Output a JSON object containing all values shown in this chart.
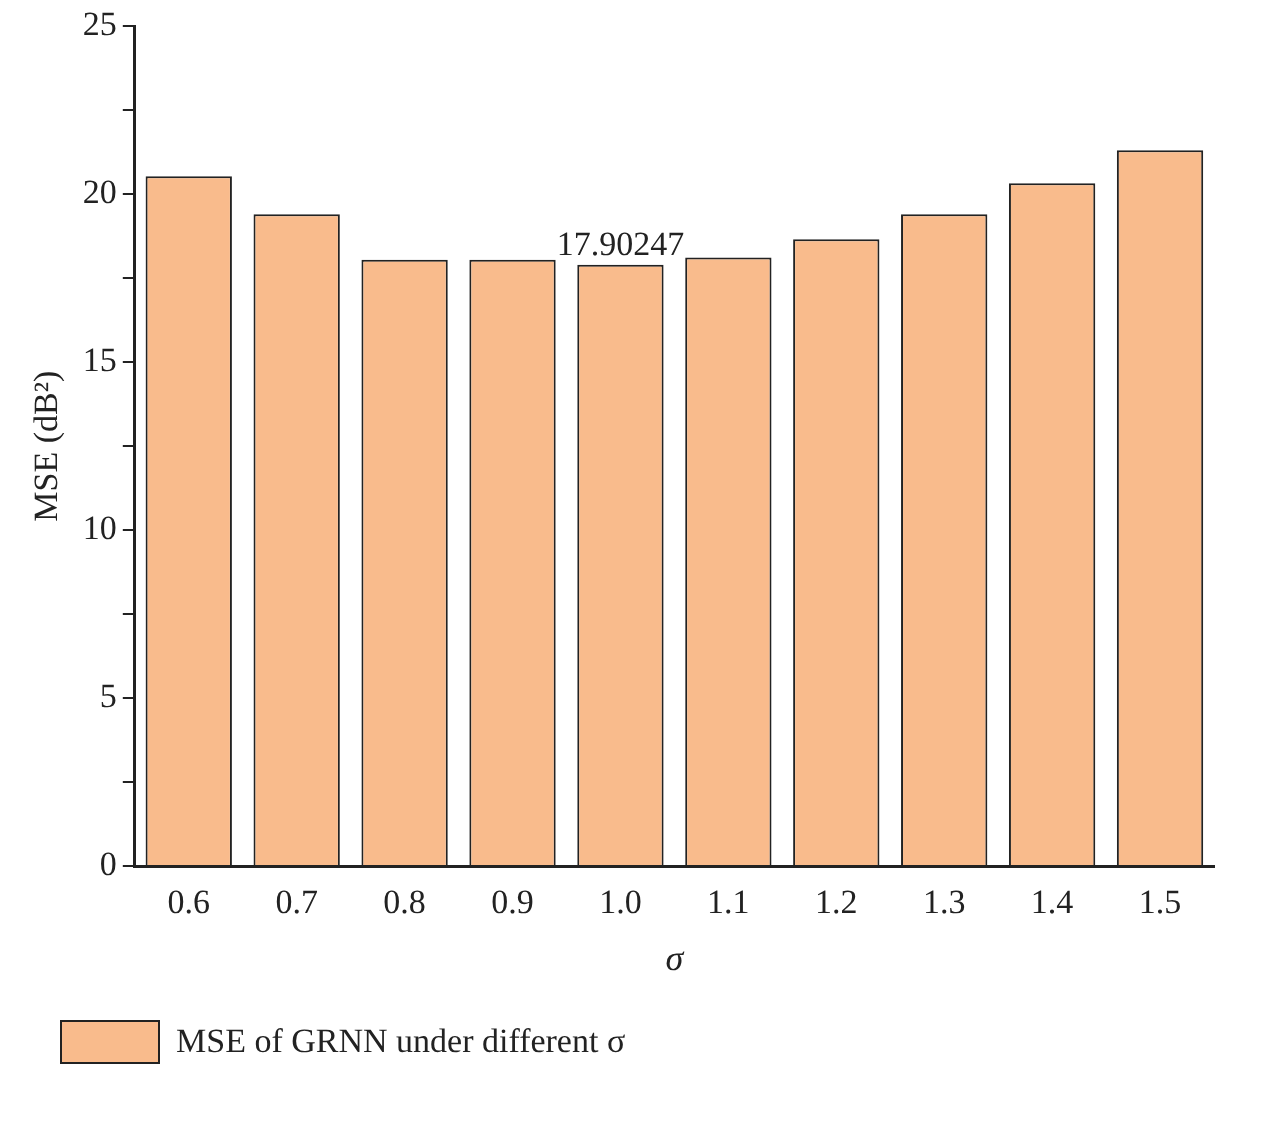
{
  "chart_data": {
    "type": "bar",
    "xlabel": "σ",
    "ylabel": "MSE (dB²)",
    "categories": [
      "0.6",
      "0.7",
      "0.8",
      "0.9",
      "1.0",
      "1.1",
      "1.2",
      "1.3",
      "1.4",
      "1.5"
    ],
    "series": [
      {
        "name": "MSE of GRNN under different σ",
        "color": "#f9bb8c",
        "values": [
          20.54,
          19.41,
          18.05,
          18.05,
          17.90247,
          18.12,
          18.66,
          19.41,
          20.33,
          21.31
        ],
        "value_labels": [
          null,
          null,
          null,
          null,
          "17.90247",
          null,
          null,
          null,
          null,
          null
        ]
      }
    ],
    "ylim": [
      0,
      25
    ],
    "yticks": [
      0,
      {
        "value": 2.5,
        "label": null
      },
      5,
      {
        "value": 7.5,
        "label": null
      },
      10,
      {
        "value": 12.5,
        "label": null
      },
      15,
      {
        "value": 17.5,
        "label": null
      },
      20,
      {
        "value": 22.5,
        "label": null
      },
      25
    ],
    "grid": false,
    "legend": "bottom left"
  }
}
